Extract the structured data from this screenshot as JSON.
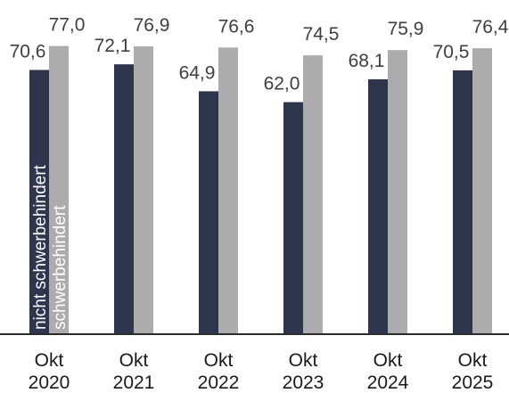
{
  "chart_data": {
    "type": "bar",
    "categories": [
      [
        "Okt",
        "2020"
      ],
      [
        "Okt",
        "2021"
      ],
      [
        "Okt",
        "2022"
      ],
      [
        "Okt",
        "2023"
      ],
      [
        "Okt",
        "2024"
      ],
      [
        "Okt",
        "2025"
      ]
    ],
    "series": [
      {
        "name": "nicht schwerbehindert",
        "color": "#2e364d",
        "values": [
          70.6,
          72.1,
          64.9,
          62.0,
          68.1,
          70.5
        ],
        "labels": [
          "70,6",
          "72,1",
          "64,9",
          "62,0",
          "68,1",
          "70,5"
        ]
      },
      {
        "name": "schwerbehindert",
        "color": "#acacae",
        "values": [
          77.0,
          76.9,
          76.6,
          74.5,
          75.9,
          76.4
        ],
        "labels": [
          "77,0",
          "76,9",
          "76,6",
          "74,5",
          "75,9",
          "76,4"
        ]
      }
    ],
    "legend": "inside-first-bars-rotated",
    "grid": false,
    "axis_color": "#2b2b2b"
  }
}
